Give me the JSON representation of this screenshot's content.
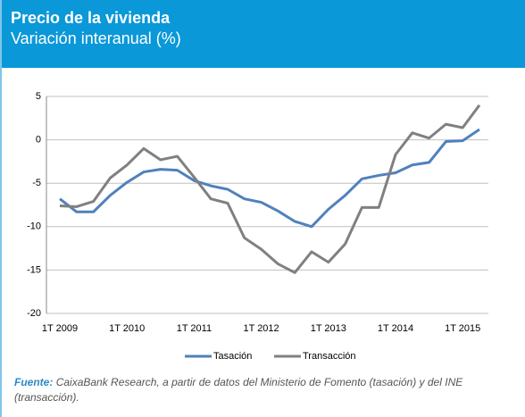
{
  "header": {
    "title": "Precio de la vivienda",
    "subtitle": "Variación interanual (%)"
  },
  "chart_data": {
    "type": "line",
    "categories": [
      "1T 2009",
      null,
      null,
      null,
      "1T 2010",
      null,
      null,
      null,
      "1T 2011",
      null,
      null,
      null,
      "1T 2012",
      null,
      null,
      null,
      "1T 2013",
      null,
      null,
      null,
      "1T 2014",
      null,
      null,
      null,
      "1T 2015",
      null
    ],
    "series": [
      {
        "name": "Tasación",
        "color": "#4f81bd",
        "values": [
          -6.8,
          -8.3,
          -8.3,
          -6.4,
          -4.9,
          -3.7,
          -3.4,
          -3.5,
          -4.7,
          -5.3,
          -5.7,
          -6.8,
          -7.2,
          -8.2,
          -9.4,
          -10.0,
          -8.0,
          -6.4,
          -4.5,
          -4.1,
          -3.8,
          -2.9,
          -2.6,
          -0.2,
          -0.1,
          1.2
        ]
      },
      {
        "name": "Transacción",
        "color": "#808080",
        "values": [
          -7.6,
          -7.7,
          -7.1,
          -4.4,
          -2.9,
          -1.0,
          -2.3,
          -1.9,
          -4.3,
          -6.8,
          -7.3,
          -11.3,
          -12.6,
          -14.3,
          -15.3,
          -12.9,
          -14.1,
          -12.0,
          -7.8,
          -7.8,
          -1.7,
          0.8,
          0.2,
          1.8,
          1.4,
          4.0
        ]
      }
    ],
    "ylim": [
      -20,
      5
    ],
    "yticks": [
      -20,
      -15,
      -10,
      -5,
      0,
      5
    ],
    "grid": true,
    "legend": "bottom"
  },
  "source": {
    "label": "Fuente:",
    "text": "CaixaBank Research, a partir de datos del Ministerio de Fomento (tasación) y del INE (transacción)."
  }
}
